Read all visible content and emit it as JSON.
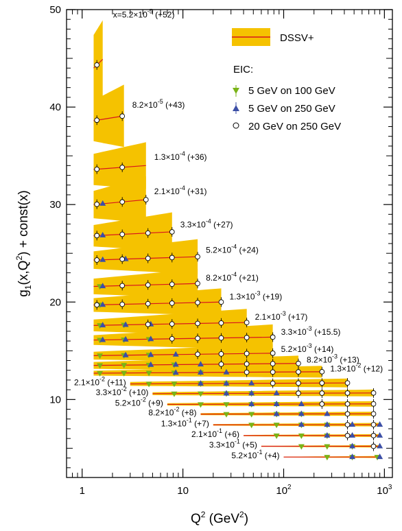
{
  "chart_data": {
    "type": "line",
    "xlabel_parts": [
      "Q",
      "2",
      " (GeV",
      "2",
      ")"
    ],
    "ylabel_parts": [
      "g",
      "1",
      "(x,Q",
      "2",
      ") + const(x)"
    ],
    "xscale": "log",
    "xlim": [
      0.7,
      1200
    ],
    "ylim": [
      2,
      50
    ],
    "x_ticks": [
      1,
      10,
      100,
      1000
    ],
    "x_tick_labels": [
      {
        "base": "1"
      },
      {
        "base": "10"
      },
      {
        "base": "10",
        "exp": "2"
      },
      {
        "base": "10",
        "exp": "3"
      }
    ],
    "y_ticks": [
      10,
      20,
      30,
      40,
      50
    ],
    "y_tick_labels": [
      "10",
      "20",
      "30",
      "40",
      "50"
    ],
    "grid": false,
    "legend": {
      "placement": "top-right",
      "band_label": "DSSV+",
      "header": "EIC:",
      "items": [
        {
          "label": "5 GeV on 100 GeV",
          "marker": "triangle-down",
          "color": "#7ab317"
        },
        {
          "label": "5 GeV on 250 GeV",
          "marker": "triangle-up",
          "color": "#3c4fa6"
        },
        {
          "label": "20 GeV on 250 GeV",
          "marker": "circle-open",
          "color": "#000000"
        }
      ]
    },
    "colors": {
      "band": "#f5c200",
      "line": "#d8141e",
      "green": "#7ab317",
      "blue": "#3c4fa6",
      "circle": "#000000"
    },
    "bins": [
      {
        "label": {
          "m": "5.2",
          "e": "-5",
          "o": "+52"
        },
        "prefix": "x=",
        "y": 44,
        "slope": 0.9,
        "q2min": 1.3,
        "q2max": 1.6,
        "band": [
          3.4,
          4.0
        ],
        "circles": [
          1.4
        ],
        "triangles_up": [],
        "triangles_down": []
      },
      {
        "label": {
          "m": "8.2",
          "e": "-5",
          "o": "+43"
        },
        "y": 38.6,
        "slope": 0.5,
        "q2min": 1.3,
        "q2max": 2.6,
        "band": [
          2.1,
          3.2
        ],
        "circles": [
          1.4,
          2.5
        ],
        "triangles_up": [],
        "triangles_down": []
      },
      {
        "label": {
          "m": "1.3",
          "e": "-4",
          "o": "+36"
        },
        "y": 33.6,
        "slope": 0.4,
        "q2min": 1.3,
        "q2max": 4.3,
        "band": [
          1.6,
          2.4
        ],
        "circles": [
          1.4,
          2.5
        ],
        "triangles_up": [],
        "triangles_down": []
      },
      {
        "label": {
          "m": "2.1",
          "e": "-4",
          "o": "+31"
        },
        "y": 30.0,
        "slope": 0.5,
        "q2min": 1.3,
        "q2max": 4.3,
        "band": [
          1.4,
          2.4
        ],
        "circles": [
          1.4,
          2.5,
          4.3
        ],
        "triangles_up": [
          1.6
        ],
        "triangles_down": []
      },
      {
        "label": {
          "m": "3.3",
          "e": "-4",
          "o": "+27"
        },
        "y": 26.8,
        "slope": 0.4,
        "q2min": 1.3,
        "q2max": 7.8,
        "band": [
          1.1,
          2.0
        ],
        "circles": [
          1.4,
          2.5,
          4.5,
          7.8
        ],
        "triangles_up": [
          1.6
        ],
        "triangles_down": []
      },
      {
        "label": {
          "m": "5.2",
          "e": "-4",
          "o": "+24"
        },
        "y": 24.3,
        "slope": 0.35,
        "q2min": 1.3,
        "q2max": 14,
        "band": [
          0.9,
          1.8
        ],
        "circles": [
          1.4,
          2.5,
          4.5,
          7.8,
          14
        ],
        "triangles_up": [
          1.6,
          2.7
        ],
        "triangles_down": []
      },
      {
        "label": {
          "m": "8.2",
          "e": "-4",
          "o": "+21"
        },
        "y": 21.6,
        "slope": 0.3,
        "q2min": 1.3,
        "q2max": 14,
        "band": [
          0.8,
          1.5
        ],
        "circles": [
          2.5,
          4.5,
          7.8,
          14
        ],
        "triangles_up": [
          1.6
        ],
        "triangles_down": [
          1.5
        ]
      },
      {
        "label": {
          "m": "1.3",
          "e": "-3",
          "o": "+19"
        },
        "y": 19.7,
        "slope": 0.3,
        "q2min": 1.3,
        "q2max": 24,
        "band": [
          0.7,
          1.4
        ],
        "circles": [
          1.4,
          2.5,
          4.5,
          7.8,
          14,
          24
        ],
        "triangles_up": [
          1.6
        ],
        "triangles_down": [
          1.5
        ]
      },
      {
        "label": {
          "m": "2.1",
          "e": "-3",
          "o": "+17"
        },
        "y": 17.6,
        "slope": 0.3,
        "q2min": 1.3,
        "q2max": 43,
        "band": [
          0.6,
          1.4
        ],
        "circles": [
          4.5,
          7.8,
          14,
          24,
          43
        ],
        "triangles_up": [
          1.6,
          2.7,
          4.8
        ],
        "triangles_down": [
          1.5,
          2.6
        ]
      },
      {
        "label": {
          "m": "3.3",
          "e": "-3",
          "o": "+15.5"
        },
        "y": 16.1,
        "slope": 0.3,
        "q2min": 1.3,
        "q2max": 78,
        "band": [
          0.5,
          1.3
        ],
        "circles": [
          7.8,
          14,
          24,
          43,
          78
        ],
        "triangles_up": [
          1.6,
          2.7,
          4.8
        ],
        "triangles_down": [
          1.5,
          2.6,
          4.6
        ]
      },
      {
        "label": {
          "m": "5.2",
          "e": "-3",
          "o": "+14"
        },
        "y": 14.5,
        "slope": 0.25,
        "q2min": 1.3,
        "q2max": 78,
        "band": [
          0.4,
          0.9
        ],
        "circles": [
          14,
          24,
          43,
          78
        ],
        "triangles_up": [
          2.7,
          4.8,
          8.5
        ],
        "triangles_down": [
          1.5,
          2.6,
          4.6
        ]
      },
      {
        "label": {
          "m": "8.2",
          "e": "-3",
          "o": "+13"
        },
        "y": 13.5,
        "slope": 0.2,
        "q2min": 1.3,
        "q2max": 140,
        "band": [
          0.35,
          0.8
        ],
        "circles": [
          24,
          43,
          78,
          140
        ],
        "triangles_up": [
          4.8,
          8.5,
          15
        ],
        "triangles_down": [
          1.5,
          2.6,
          4.6,
          8.2
        ]
      },
      {
        "label": {
          "m": "1.3",
          "e": "-2",
          "o": "+12"
        },
        "y": 12.7,
        "slope": 0.15,
        "q2min": 1.3,
        "q2max": 240,
        "band": [
          0.25,
          0.6
        ],
        "circles": [
          43,
          78,
          140,
          240
        ],
        "triangles_up": [
          8.5,
          15,
          27
        ],
        "triangles_down": [
          1.5,
          2.6,
          4.6,
          8.2,
          15
        ]
      },
      {
        "label": {
          "m": "2.1",
          "e": "-2",
          "o": "+11"
        },
        "y": 11.6,
        "slope": 0.1,
        "q2min": 3,
        "q2max": 430,
        "band": [
          0.2,
          0.45
        ],
        "circles": [
          78,
          140,
          240,
          430
        ],
        "triangles_up": [
          15,
          27,
          48
        ],
        "triangles_down": [
          4.6,
          8.2,
          15,
          27
        ]
      },
      {
        "label": {
          "m": "3.3",
          "e": "-2",
          "o": "+10"
        },
        "y": 10.6,
        "slope": 0.07,
        "q2min": 5,
        "q2max": 780,
        "band": [
          0.15,
          0.35
        ],
        "circles": [
          140,
          240,
          430,
          780
        ],
        "triangles_up": [
          27,
          48,
          85
        ],
        "triangles_down": [
          8.2,
          15,
          27,
          48
        ]
      },
      {
        "label": {
          "m": "5.2",
          "e": "-2",
          "o": "+9"
        },
        "y": 9.5,
        "slope": 0.05,
        "q2min": 7,
        "q2max": 780,
        "band": [
          0.12,
          0.28
        ],
        "circles": [
          240,
          430,
          780
        ],
        "triangles_up": [
          48,
          85,
          150
        ],
        "triangles_down": [
          15,
          27,
          48,
          85
        ]
      },
      {
        "label": {
          "m": "8.2",
          "e": "-2",
          "o": "+8"
        },
        "y": 8.5,
        "slope": 0.03,
        "q2min": 15,
        "q2max": 780,
        "band": [
          0.1,
          0.22
        ],
        "circles": [
          430,
          780
        ],
        "triangles_up": [
          85,
          150,
          270
        ],
        "triangles_down": [
          27,
          48,
          85,
          150
        ]
      },
      {
        "label": {
          "m": "1.3",
          "e": "-1",
          "o": "+7"
        },
        "y": 7.4,
        "slope": 0.02,
        "q2min": 20,
        "q2max": 900,
        "band": [
          0.08,
          0.18
        ],
        "circles": [
          430,
          780
        ],
        "triangles_up": [
          150,
          270,
          480,
          900
        ],
        "triangles_down": [
          48,
          85,
          150,
          270
        ]
      },
      {
        "label": {
          "m": "2.1",
          "e": "-1",
          "o": "+6"
        },
        "y": 6.3,
        "slope": 0.0,
        "q2min": 40,
        "q2max": 900,
        "band": [
          0.06,
          0.15
        ],
        "circles": [
          430,
          780
        ],
        "triangles_up": [
          270,
          480,
          900
        ],
        "triangles_down": [
          85,
          150,
          270
        ]
      },
      {
        "label": {
          "m": "3.3",
          "e": "-1",
          "o": "+5"
        },
        "y": 5.2,
        "slope": 0.0,
        "q2min": 60,
        "q2max": 900,
        "band": [
          0.05,
          0.12
        ],
        "circles": [
          780
        ],
        "triangles_up": [
          480,
          900
        ],
        "triangles_down": [
          150,
          270,
          480
        ]
      },
      {
        "label": {
          "m": "5.2",
          "e": "-1",
          "o": "+4"
        },
        "y": 4.1,
        "slope": 0.0,
        "q2min": 100,
        "q2max": 900,
        "band": [
          0.04,
          0.1
        ],
        "circles": [],
        "triangles_up": [
          480,
          900
        ],
        "triangles_down": [
          270,
          480,
          850
        ]
      }
    ]
  }
}
